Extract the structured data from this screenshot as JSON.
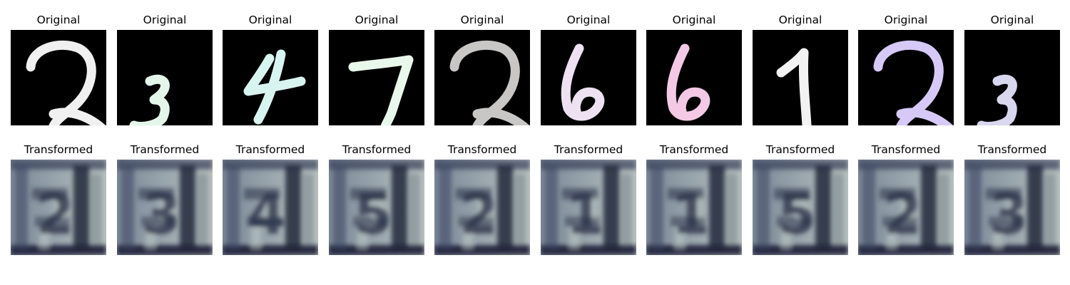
{
  "figure": {
    "original_label": "Original",
    "transformed_label": "Transformed"
  },
  "samples": [
    {
      "digit": "2",
      "original_color": "#f0f0f0",
      "transformed_hint": "2"
    },
    {
      "digit": "3",
      "original_color": "#e4f6ea",
      "transformed_hint": "3"
    },
    {
      "digit": "4",
      "original_color": "#d8f4f0",
      "transformed_hint": "4"
    },
    {
      "digit": "7",
      "original_color": "#e8f8ea",
      "transformed_hint": "5"
    },
    {
      "digit": "2",
      "original_color": "#c9c6c6",
      "transformed_hint": "2"
    },
    {
      "digit": "6",
      "original_color": "#eee2f2",
      "transformed_hint": "1"
    },
    {
      "digit": "6",
      "original_color": "#f4c9e6",
      "transformed_hint": "1"
    },
    {
      "digit": "1",
      "original_color": "#f2f2f2",
      "transformed_hint": "5"
    },
    {
      "digit": "2",
      "original_color": "#d7c9f7",
      "transformed_hint": "2"
    },
    {
      "digit": "3",
      "original_color": "#d9d7ee",
      "transformed_hint": "3"
    }
  ]
}
